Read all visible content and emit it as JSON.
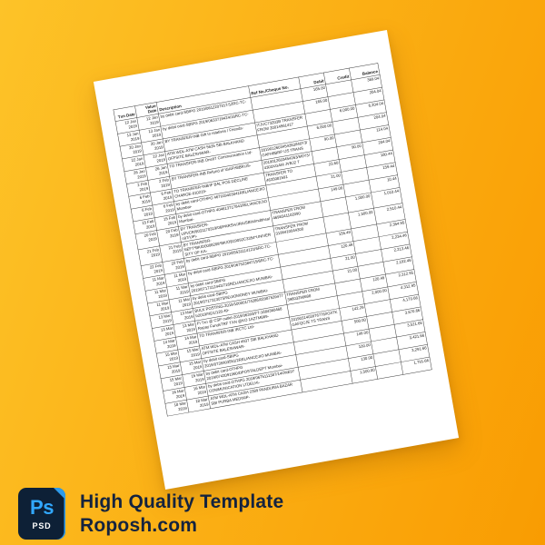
{
  "background": {
    "gradient_start": "#fdc328",
    "gradient_mid": "#fbb015",
    "gradient_end": "#f99c02"
  },
  "document": {
    "type": "bank-statement-template",
    "table": {
      "headers": [
        "Txn Date",
        "Value Date",
        "Description",
        "Ref No./Cheque No.",
        "Debit",
        "Credit",
        "Balance"
      ],
      "rows": [
        [
          "12 Jan 2019",
          "12 Jan 2019",
          "by debit card-SBIPG 2019/0612207817/12RC-TC-",
          "",
          "165.00",
          "",
          "369.04"
        ],
        [
          "13 Jan 2019",
          "13 Jan 2019",
          "by debit card-SBIPG 2019/0633719424/16RC-TC-",
          "",
          "165.00",
          "",
          "204.04"
        ],
        [
          "20 Jan 2019",
          "20 Jan 2019",
          "BY TRANSFER-INB Gift to relatives / Friends-",
          "ITJUC73203B TRANSFER FROM 20014561417",
          "",
          "6,000.00",
          "6,204.04"
        ],
        [
          "22 Jan 2019",
          "22 Jan 2019",
          "ATM WDL-ATM CASH 5635 SBI BALKHAND OFFSITE BALESHWAR-",
          "",
          "6,000.00",
          "",
          "204.04"
        ],
        [
          "26 Jan 2019",
          "26 Jan 2019",
          "TO TRANSFER-INB One97 Communication Ltd-",
          "2019012603454263/M0Y3/GAFH8BRP IJS TRANS",
          "90.00",
          "",
          "114.04"
        ],
        [
          "2 Feb 2019",
          "2 Feb 2019",
          "BY TRANSFER-INB Refund of IGAFH8BRIJS-",
          "2019012603454263/M0Y3/4303XGAM JVBJ2 T",
          "",
          "90.00",
          "204.04"
        ],
        [
          "6 Feb 2019",
          "6 Feb 2019",
          "TO TRANSFER-INB/IF BAL POS DECLINE CHARGE-010219-",
          "TRANSFER TO 4635081591",
          "23.60",
          "",
          "180.44"
        ],
        [
          "6 Feb 2019",
          "6 Feb 2019",
          "by debit card-OTHPG 467919403041RELIANCEJIO Mumbai-",
          "",
          "21.00",
          "",
          "159.44"
        ],
        [
          "15 Feb 2019",
          "15 Feb 2019",
          "by debit card-OTHPG 404613717841RELIANCEJIO Mumbai-",
          "",
          "149.00",
          "",
          "10.44"
        ],
        [
          "20 Feb 2019",
          "20 Feb 2019",
          "BY TRANSFER-UPI/CR/9031170319/06/PARSH/JRAISBIN/mdbhsaln97/UPI-",
          "TRANSFER FROM 4698341102090",
          "",
          "1,000.00",
          "1,010.44"
        ],
        [
          "21 Feb 2019",
          "21 Feb 2019",
          "BY TRANSFER-NEFT*BKID0008208*BK/OB19092C3354*UNIVERSITY OF KA-",
          "TRANSFER FROM 3199410044300",
          "",
          "1,500.00",
          "2,510.44"
        ],
        [
          "22 Feb 2019",
          "22 Feb 2019",
          "by debit card-SBIPG 2019/05531114121/6RC-TC-",
          "",
          "155.49",
          "",
          "2,354.95"
        ],
        [
          "11 Mar 2019",
          "11 Mar 2019",
          "by debit card-SBIPG 2019/06752384715/6RC-TC-",
          "",
          "120.49",
          "",
          "2,234.46"
        ],
        [
          "11 Mar 2019",
          "11 Mar 2019",
          "by debit card-SBIPG 2019/0717312443/716RELIANCEJIO MUMBAI-",
          "",
          "21.00",
          "",
          "2,213.46"
        ],
        [
          "11 Mar 2019",
          "11 Mar 2019",
          "by debit card-SBIPG 2019/0717313075/9DJIOMONEY MUMBAI-",
          "",
          "21.00",
          "",
          "2,192.46"
        ],
        [
          "13 Mar 2019",
          "13 Mar 2019",
          "BULK POSTING-2019/100001/74286/02987539477 b2019/ND1/120.49-",
          "TRANSFER FROM 39603290688",
          "",
          "120.49",
          "2,312.95"
        ],
        [
          "13 Mar 2019",
          "13 Mar 2019",
          "FI Txn @ CSP outlet-2019/06393/FT-1684360468 Rupay FundsTRF TXN @KO 1AZTM669-",
          "",
          "",
          "2,000.00",
          "4,312.95"
        ],
        [
          "14 Mar 2019",
          "14 Mar 2019",
          "TO TRANSFER-INB IRCTC Ltd-",
          "2019031403976776/IG4TKGAFQCJE TS TRANS",
          "142.29",
          "",
          "4,170.66"
        ],
        [
          "15 Mar 2019",
          "15 Mar 2019",
          "ATM WDL-ATM CASH 4937 SBI BALKHAND OFFSITE BALESHWAR-",
          "",
          "500.00",
          "",
          "3,670.66"
        ],
        [
          "15 Mar 2019",
          "15 Mar 2019",
          "by debit card-SBIPG 2019/0735903551/2RELIANCEJIO MUMBAI-",
          "",
          "149.00",
          "",
          "3,521.66"
        ],
        [
          "15 Mar 2019",
          "15 Mar 2019",
          "by debit card-OTHPG 2019/0742091960/DPOSTALDEPT Mumbai-",
          "",
          "100.00",
          "",
          "3,421.66"
        ],
        [
          "16 Mar 2019",
          "16 Mar 2019",
          "by debit card-OTHPG 2019/0675111387/14ONE97 COMMUNICATION LTDELHI-",
          "",
          "130.00",
          "",
          "3,291.66"
        ],
        [
          "18 Mar 2019",
          "18 Mar 2019",
          "ATM WDL-ATM CASH 2389 PANDURIA BAZAR SBI PURBA MEDINIP-",
          "",
          "1,500.00",
          "",
          "1,791.66"
        ]
      ]
    }
  },
  "footer": {
    "badge": {
      "app": "Ps",
      "format": "PSD",
      "accent": "#31a8ff",
      "bg": "#0d2036"
    },
    "title": "High Quality Template",
    "website": "Roposh.com"
  }
}
